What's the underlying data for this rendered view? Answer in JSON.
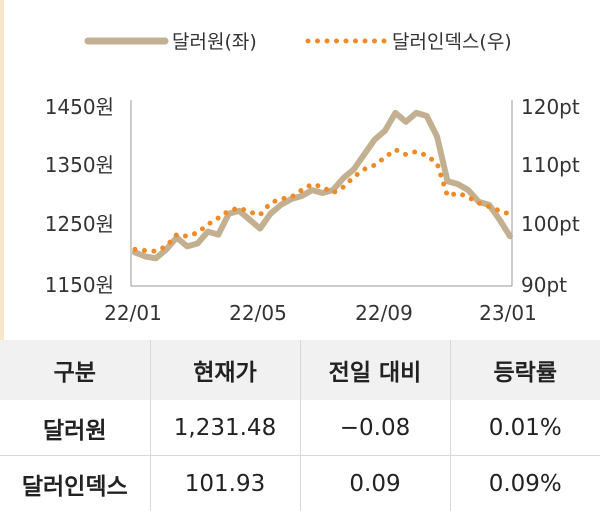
{
  "chart_data": {
    "type": "line",
    "x_ticks": [
      "22/01",
      "22/05",
      "22/09",
      "23/01"
    ],
    "y_left": {
      "ticks": [
        "1450원",
        "1350원",
        "1250원",
        "1150원"
      ],
      "range": [
        1150,
        1450
      ]
    },
    "y_right": {
      "ticks": [
        "120pt",
        "110pt",
        "100pt",
        "90pt"
      ],
      "range": [
        90,
        120
      ]
    },
    "legend_position": "top",
    "series": [
      {
        "name": "달러원(좌)",
        "axis": "left",
        "style": "solid",
        "color": "#c3b091",
        "x": [
          "22/01",
          "22/01",
          "22/02",
          "22/02",
          "22/03",
          "22/03",
          "22/03",
          "22/04",
          "22/04",
          "22/04",
          "22/05",
          "22/05",
          "22/05",
          "22/06",
          "22/06",
          "22/06",
          "22/07",
          "22/07",
          "22/07",
          "22/08",
          "22/08",
          "22/08",
          "22/09",
          "22/09",
          "22/09",
          "22/10",
          "22/10",
          "22/10",
          "22/10",
          "22/11",
          "22/11",
          "22/11",
          "22/12",
          "22/12",
          "22/12",
          "23/01",
          "23/01"
        ],
        "values": [
          1205,
          1198,
          1195,
          1210,
          1230,
          1215,
          1220,
          1240,
          1235,
          1270,
          1275,
          1260,
          1245,
          1270,
          1285,
          1295,
          1300,
          1310,
          1305,
          1310,
          1330,
          1345,
          1370,
          1395,
          1410,
          1440,
          1425,
          1440,
          1435,
          1400,
          1325,
          1320,
          1310,
          1290,
          1285,
          1260,
          1232
        ]
      },
      {
        "name": "달러인덱스(우)",
        "axis": "right",
        "style": "dotted",
        "color": "#f08a24",
        "x": [
          "22/01",
          "22/01",
          "22/02",
          "22/02",
          "22/03",
          "22/03",
          "22/03",
          "22/04",
          "22/04",
          "22/04",
          "22/05",
          "22/05",
          "22/05",
          "22/06",
          "22/06",
          "22/06",
          "22/07",
          "22/07",
          "22/07",
          "22/08",
          "22/08",
          "22/08",
          "22/09",
          "22/09",
          "22/09",
          "22/10",
          "22/10",
          "22/10",
          "22/10",
          "22/11",
          "22/11",
          "22/11",
          "22/12",
          "22/12",
          "22/12",
          "23/01",
          "23/01"
        ],
        "values": [
          96.0,
          95.8,
          95.7,
          96.5,
          98.5,
          98.2,
          98.8,
          100.2,
          101.3,
          102.5,
          103.0,
          102.3,
          101.8,
          103.8,
          104.5,
          104.8,
          106.0,
          107.0,
          106.5,
          105.5,
          106.5,
          108.2,
          109.5,
          110.2,
          111.5,
          112.8,
          112.0,
          112.5,
          111.8,
          110.5,
          105.0,
          105.5,
          104.8,
          103.8,
          103.2,
          102.5,
          101.93
        ]
      }
    ]
  },
  "table": {
    "headers": [
      "구분",
      "현재가",
      "전일 대비",
      "등락률"
    ],
    "rows": [
      [
        "달러원",
        "1,231.48",
        "−0.08",
        "0.01%"
      ],
      [
        "달러인덱스",
        "101.93",
        "0.09",
        "0.09%"
      ]
    ]
  }
}
